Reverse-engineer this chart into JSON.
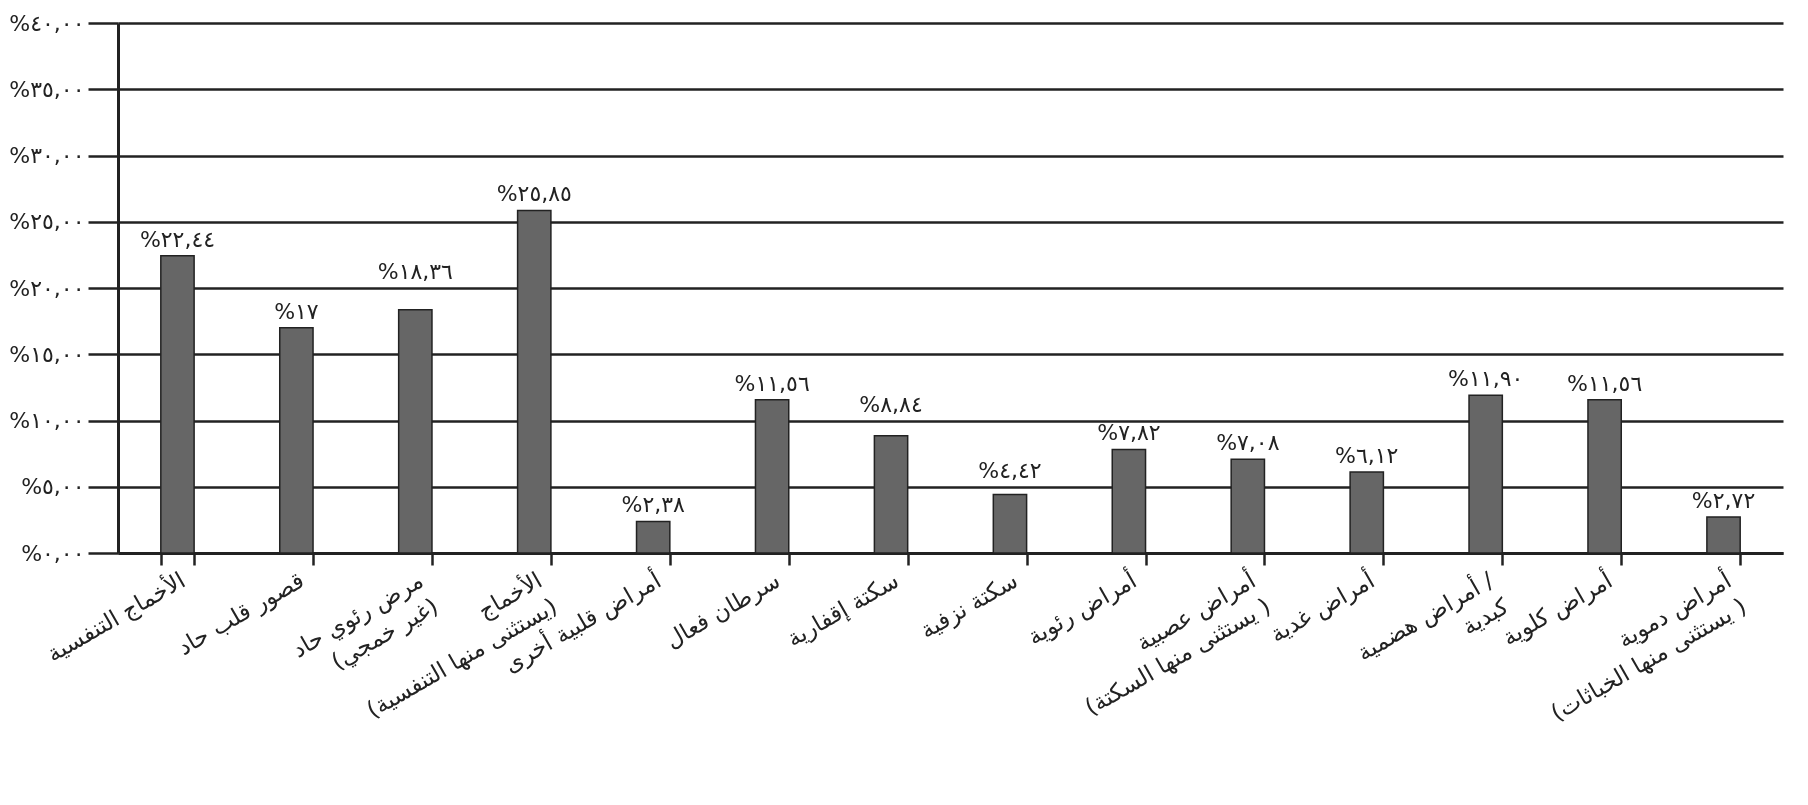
{
  "chart_data": {
    "type": "bar",
    "categories": [
      "الأخماج التنفسية",
      "قصور قلب حاد",
      "مرض رئوي حاد (غير خمجي)",
      "الأخماج (يستثنى منها التنفسية)",
      "أمراض قلبية أخرى",
      "سرطان فعال",
      "سكتة إقفارية",
      "سكتة نزفية",
      "أمراض رئوية",
      "أمراض عصبية (يستثنى منها السكتة )",
      "أمراض غدية",
      "أمراض هضمية / كبدية",
      "أمراض كلوية",
      "أمراض دموية (يستثنى منها الخباثات )"
    ],
    "values": [
      22.44,
      17,
      18.36,
      25.85,
      2.38,
      11.56,
      8.84,
      4.42,
      7.82,
      7.08,
      6.12,
      11.9,
      11.56,
      2.72
    ],
    "value_labels": [
      "%٢٢,٤٤",
      "%١٧",
      "%١٨,٣٦",
      "%٢٥,٨٥",
      "%٢,٣٨",
      "%١١,٥٦",
      "%٨,٨٤",
      "%٤,٤٢",
      "%٧,٨٢",
      "%٧,٠٨",
      "%٦,١٢",
      "%١١,٩٠",
      "%١١,٥٦",
      "%٢,٧٢"
    ],
    "color": "#666666",
    "ylim": [
      0,
      40
    ],
    "yticks": [
      {
        "value": 0,
        "label": "%٠,٠٠"
      },
      {
        "value": 5,
        "label": "%٥,٠٠"
      },
      {
        "value": 10,
        "label": "%١٠,٠٠"
      },
      {
        "value": 15,
        "label": "%١٥,٠٠"
      },
      {
        "value": 20,
        "label": "%٢٠,٠٠"
      },
      {
        "value": 25,
        "label": "%٢٥,٠٠"
      },
      {
        "value": 30,
        "label": "%٣٠,٠٠"
      },
      {
        "value": 35,
        "label": "%٣٥,٠٠"
      },
      {
        "value": 40,
        "label": "%٤٠,٠٠"
      }
    ],
    "grid": "y"
  }
}
